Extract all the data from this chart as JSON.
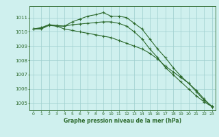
{
  "x": [
    0,
    1,
    2,
    3,
    4,
    5,
    6,
    7,
    8,
    9,
    10,
    11,
    12,
    13,
    14,
    15,
    16,
    17,
    18,
    19,
    20,
    21,
    22,
    23
  ],
  "line1": [
    1010.2,
    1010.3,
    1010.5,
    1010.4,
    1010.4,
    1010.7,
    1010.9,
    1011.1,
    1011.2,
    1011.35,
    1011.1,
    1011.1,
    1011.0,
    1010.6,
    1010.2,
    1009.5,
    1008.8,
    1008.2,
    1007.5,
    1006.9,
    1006.4,
    1005.8,
    1005.2,
    1004.8
  ],
  "line2": [
    1010.2,
    1010.25,
    1010.5,
    1010.45,
    1010.4,
    1010.5,
    1010.55,
    1010.6,
    1010.65,
    1010.7,
    1010.7,
    1010.6,
    1010.4,
    1010.0,
    1009.5,
    1008.8,
    1008.2,
    1007.5,
    1007.0,
    1006.5,
    1006.0,
    1005.5,
    1005.1,
    1004.75
  ],
  "line3": [
    1010.2,
    1010.2,
    1010.45,
    1010.4,
    1010.2,
    1010.1,
    1010.0,
    1009.9,
    1009.8,
    1009.7,
    1009.6,
    1009.4,
    1009.2,
    1009.0,
    1008.8,
    1008.5,
    1008.1,
    1007.6,
    1007.2,
    1006.8,
    1006.4,
    1005.9,
    1005.3,
    1004.75
  ],
  "bg_color": "#cff0ee",
  "grid_color": "#9ecece",
  "line_color": "#2d6a2d",
  "title": "Graphe pression niveau de la mer (hPa)",
  "ylim": [
    1004.5,
    1011.8
  ],
  "yticks": [
    1005,
    1006,
    1007,
    1008,
    1009,
    1010,
    1011
  ],
  "xtick_labels": [
    "0",
    "1",
    "2",
    "3",
    "4",
    "5",
    "6",
    "7",
    "8",
    "9",
    "10",
    "11",
    "12",
    "13",
    "14",
    "15",
    "16",
    "17",
    "18",
    "19",
    "20",
    "21",
    "22",
    "23"
  ]
}
